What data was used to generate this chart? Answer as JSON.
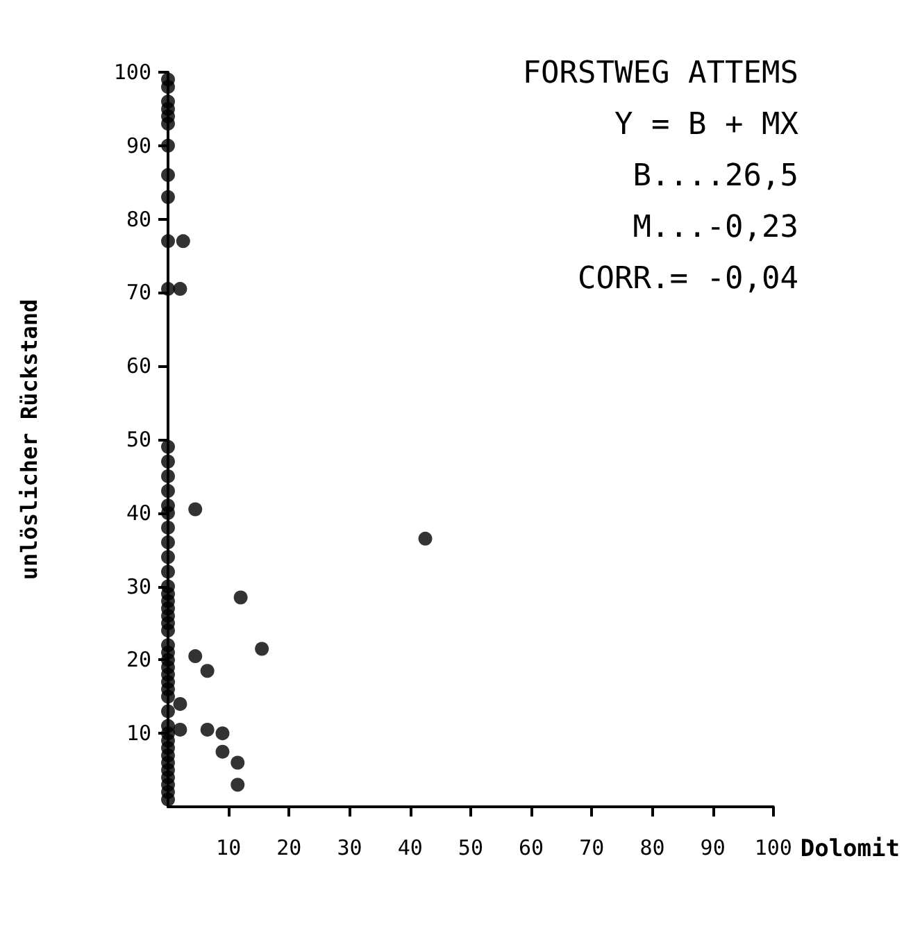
{
  "chart_data": {
    "type": "scatter",
    "xlabel": "Dolomit",
    "ylabel": "unlöslicher Rückstand",
    "annotations": [
      "FORSTWEG ATTEMS",
      "Y = B + MX",
      "B....26,5",
      "M...-0,23",
      "CORR.= -0,04"
    ],
    "x": [
      0,
      0,
      0,
      0,
      0,
      0,
      0,
      0,
      0,
      0,
      0,
      0,
      0,
      0,
      0,
      0,
      0,
      0,
      0,
      0,
      0,
      0,
      0,
      0,
      0,
      0,
      0,
      0,
      0,
      0,
      0,
      0,
      0,
      0,
      0,
      0,
      0,
      0,
      0,
      0,
      0,
      0,
      0,
      0,
      0,
      0,
      0,
      0,
      2.5,
      2,
      4.5,
      4.5,
      6.5,
      12,
      15.5,
      2,
      2,
      6.5,
      9,
      9,
      11.5,
      11.5,
      42.5
    ],
    "values": [
      99,
      98,
      96,
      95,
      94,
      93,
      90,
      86,
      83,
      77,
      70.5,
      49,
      47,
      45,
      43,
      41,
      40,
      38,
      36,
      34,
      32,
      30,
      29,
      28,
      27,
      26,
      25,
      24,
      22,
      21,
      20,
      19,
      18,
      17,
      16,
      15,
      13,
      11,
      10,
      9,
      8,
      7,
      6,
      5,
      4,
      3,
      2,
      1,
      77,
      70.5,
      40.5,
      20.5,
      18.5,
      28.5,
      21.5,
      14,
      10.5,
      10.5,
      10,
      7.5,
      6,
      3,
      36.5
    ],
    "color": "#000000",
    "marker": "circle",
    "grid": false,
    "xlim": [
      0,
      100
    ],
    "xticks": [
      10,
      20,
      30,
      40,
      50,
      60,
      70,
      80,
      90,
      100
    ],
    "ylim": [
      0,
      100
    ],
    "yticks": [
      10,
      20,
      30,
      40,
      50,
      60,
      70,
      80,
      90,
      100
    ]
  }
}
